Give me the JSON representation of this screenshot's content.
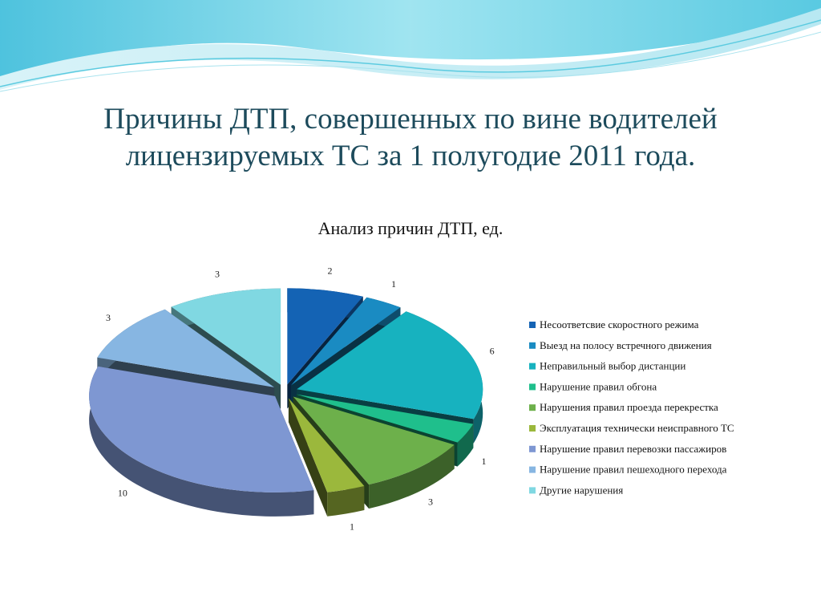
{
  "slide": {
    "title": "Причины ДТП, совершенных по вине водителей лицензируемых ТС за 1 полугодие 2011 года."
  },
  "chart_data": {
    "type": "pie3d",
    "title": "Анализ причин ДТП, ед.",
    "categories": [
      "Несоответсвие скоростного режима",
      "Выезд на полосу встречного движения",
      "Неправильный выбор дистанции",
      "Нарушение правил обгона",
      "Нарушения правил проезда перекрестка",
      "Эксплуатация технически неисправного ТС",
      "Нарушение правил перевозки пассажиров",
      "Нарушение правил пешеходного перехода",
      "Другие нарушения"
    ],
    "values": [
      2,
      1,
      6,
      1,
      3,
      1,
      10,
      3,
      3
    ],
    "colors": [
      "#1463b4",
      "#1a8bc2",
      "#17b2bf",
      "#1fbf8c",
      "#6db04b",
      "#9bb83c",
      "#7e97d2",
      "#87b6e2",
      "#80d8e2"
    ],
    "legend": "right"
  }
}
